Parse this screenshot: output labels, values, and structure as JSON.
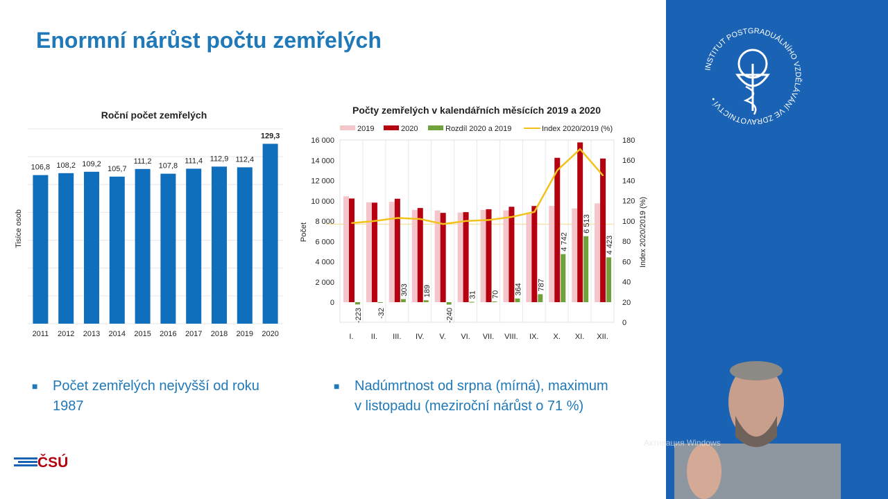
{
  "slide": {
    "title": "Enormní nárůst počtu zemřelých",
    "bullets": [
      "Počet zemřelých nejvyšší od roku 1987",
      "Nadúmrtnost od srpna (mírná), maximum v listopadu (meziroční nárůst o 71 %)"
    ],
    "bullet_lines": [
      [
        "Počet zemřelých nejvyšší od roku",
        "1987"
      ],
      [
        "Nadúmrtnost od srpna (mírná), maximum",
        "v listopadu (meziroční nárůst o 71 %)"
      ]
    ],
    "footer_logo": "ČSÚ",
    "side_logo_text": "INSTITUT POSTGRADUÁLNÍHO VZDĚLÁVÁNÍ VE ZDRAVOTNICTVÍ",
    "watermark": "Активация Windows",
    "colors": {
      "title": "#1f78b8",
      "side_panel": "#1a62b3",
      "bar_annual": "#0f6fbd",
      "bar_2019": "#f4c6cc",
      "bar_2020": "#b5000f",
      "bar_diff": "#70a23c",
      "line_index": "#f2c21b"
    }
  },
  "chart_data": [
    {
      "type": "bar",
      "title": "Roční počet zemřelých",
      "ylabel": "Tisíce osob",
      "categories": [
        "2011",
        "2012",
        "2013",
        "2014",
        "2015",
        "2016",
        "2017",
        "2018",
        "2019",
        "2020"
      ],
      "values": [
        106.8,
        108.2,
        109.2,
        105.7,
        111.2,
        107.8,
        111.4,
        112.9,
        112.4,
        129.3
      ],
      "labels": [
        "106,8",
        "108,2",
        "109,2",
        "105,7",
        "111,2",
        "107,8",
        "111,4",
        "112,9",
        "112,4",
        "129,3"
      ],
      "ylim": [
        0,
        140
      ],
      "grid": true
    },
    {
      "type": "bar",
      "title": "Počty zemřelých v kalendářních měsících 2019 a 2020",
      "ylabel": "Počet",
      "y2label": "Index 2020/2019 (%)",
      "categories": [
        "I.",
        "II.",
        "III.",
        "IV.",
        "V.",
        "VI.",
        "VII.",
        "VIII.",
        "IX.",
        "X.",
        "XI.",
        "XII."
      ],
      "ylim": [
        -2000,
        16000
      ],
      "yticks": [
        "0",
        "2 000",
        "4 000",
        "6 000",
        "8 000",
        "10 000",
        "12 000",
        "14 000",
        "16 000"
      ],
      "ytick_values": [
        0,
        2000,
        4000,
        6000,
        8000,
        10000,
        12000,
        14000,
        16000
      ],
      "y2lim": [
        0,
        180
      ],
      "y2ticks": [
        "0",
        "20",
        "40",
        "60",
        "80",
        "100",
        "120",
        "140",
        "160",
        "180"
      ],
      "legend_position": "top",
      "grid": true,
      "series": [
        {
          "name": "2019",
          "values": [
            10450,
            9850,
            9900,
            9100,
            9050,
            8850,
            9100,
            9050,
            8700,
            9500,
            9250,
            9750
          ]
        },
        {
          "name": "2020",
          "values": [
            10227,
            9818,
            10203,
            9289,
            8810,
            8881,
            9170,
            9414,
            9487,
            14242,
            15763,
            14173
          ]
        },
        {
          "name": "Rozdíl 2020 a 2019",
          "values": [
            -223,
            -32,
            303,
            189,
            -240,
            31,
            70,
            364,
            787,
            4742,
            6513,
            4423
          ],
          "labels": [
            "-223",
            "-32",
            "303",
            "189",
            "-240",
            "31",
            "70",
            "364",
            "787",
            "4 742",
            "6 513",
            "4 423"
          ]
        },
        {
          "name": "Index 2020/2019 (%)",
          "type": "line",
          "axis": "right",
          "values": [
            98,
            100,
            103,
            102,
            97,
            100,
            101,
            104,
            109,
            150,
            171,
            145
          ]
        }
      ]
    }
  ]
}
